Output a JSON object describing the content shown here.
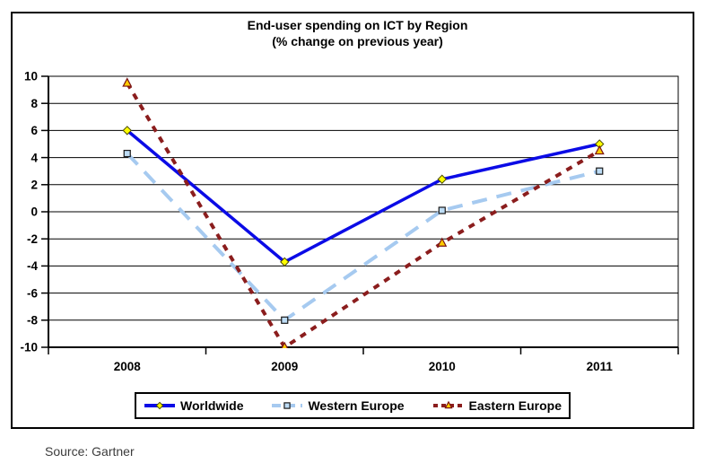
{
  "chart_data": {
    "type": "line",
    "title": "End-user spending on ICT by Region",
    "subtitle": "(% change on previous year)",
    "categories": [
      "2008",
      "2009",
      "2010",
      "2011"
    ],
    "series": [
      {
        "name": "Worldwide",
        "values": [
          6.0,
          -3.7,
          2.4,
          5.0
        ],
        "color": "#0b0be6",
        "line_style": "solid",
        "marker": "diamond",
        "marker_fill": "#ffff00",
        "marker_stroke": "#4d4d00"
      },
      {
        "name": "Western Europe",
        "values": [
          4.3,
          -8.0,
          0.1,
          3.0
        ],
        "color": "#a6caf0",
        "line_style": "long-dash",
        "marker": "square",
        "marker_fill": "#bddcf5",
        "marker_stroke": "#1a1a1a"
      },
      {
        "name": "Eastern Europe",
        "values": [
          9.5,
          -10.0,
          -2.3,
          4.5
        ],
        "color": "#8b1d1d",
        "line_style": "dash",
        "marker": "triangle",
        "marker_fill": "#ffcc00",
        "marker_stroke": "#7a1414"
      }
    ],
    "ylim": [
      -10,
      10
    ],
    "yticks": [
      10,
      8,
      6,
      4,
      2,
      0,
      -2,
      -4,
      -6,
      -8,
      -10
    ],
    "xlabel": "",
    "ylabel": "",
    "grid": "horizontal",
    "legend_position": "bottom",
    "source": "Source: Gartner"
  }
}
